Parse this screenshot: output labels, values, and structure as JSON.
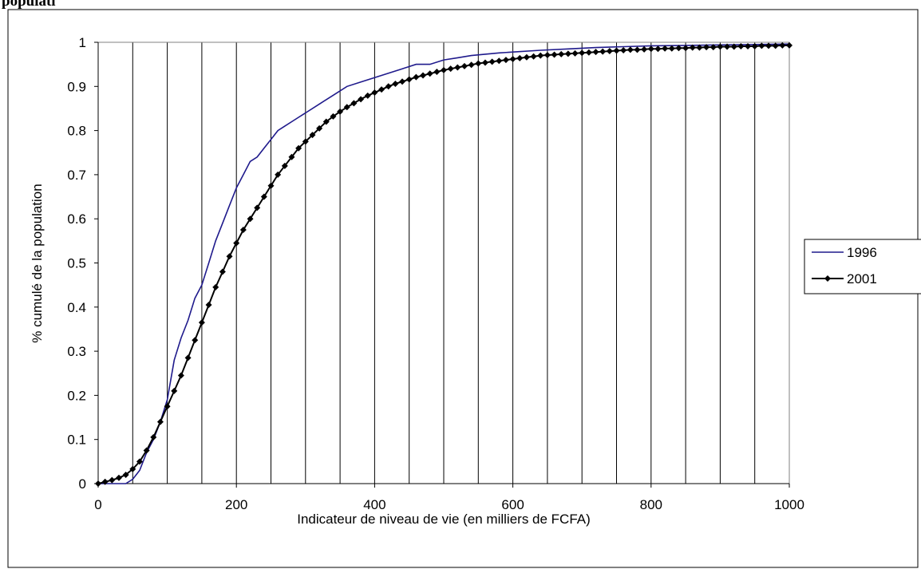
{
  "page": {
    "heading": "populati"
  },
  "chart_data": {
    "type": "line",
    "title": "",
    "xlabel": "Indicateur de niveau de vie (en milliers de FCFA)",
    "ylabel": "% cumulé de la population",
    "xlim": [
      0,
      1000
    ],
    "ylim": [
      0,
      1
    ],
    "x_ticks": [
      "0",
      "200",
      "400",
      "600",
      "800",
      "1000"
    ],
    "y_ticks": [
      "0",
      "0.1",
      "0.2",
      "0.3",
      "0.4",
      "0.5",
      "0.6",
      "0.7",
      "0.8",
      "0.9",
      "1"
    ],
    "vertical_gridlines_every": 50,
    "grid": true,
    "legend_position": "right",
    "series": [
      {
        "name": "1996",
        "color": "#1f1a8c",
        "marker": "none",
        "x": [
          0,
          40,
          50,
          60,
          70,
          80,
          90,
          100,
          110,
          120,
          130,
          140,
          150,
          160,
          170,
          180,
          190,
          200,
          210,
          220,
          230,
          240,
          250,
          260,
          270,
          280,
          290,
          300,
          320,
          340,
          360,
          380,
          400,
          420,
          440,
          460,
          480,
          500,
          520,
          540,
          560,
          580,
          600,
          640,
          680,
          720,
          760,
          800,
          850,
          900,
          950,
          1000
        ],
        "y": [
          0,
          0,
          0.01,
          0.03,
          0.07,
          0.1,
          0.14,
          0.19,
          0.28,
          0.33,
          0.37,
          0.42,
          0.45,
          0.5,
          0.55,
          0.59,
          0.63,
          0.67,
          0.7,
          0.73,
          0.74,
          0.76,
          0.78,
          0.8,
          0.81,
          0.82,
          0.83,
          0.84,
          0.86,
          0.88,
          0.9,
          0.91,
          0.92,
          0.93,
          0.94,
          0.95,
          0.95,
          0.96,
          0.965,
          0.97,
          0.973,
          0.976,
          0.978,
          0.982,
          0.985,
          0.988,
          0.99,
          0.992,
          0.993,
          0.994,
          0.995,
          0.996
        ]
      },
      {
        "name": "2001",
        "color": "#000000",
        "marker": "diamond",
        "x": [
          0,
          10,
          20,
          30,
          40,
          50,
          60,
          70,
          80,
          90,
          100,
          110,
          120,
          130,
          140,
          150,
          160,
          170,
          180,
          190,
          200,
          210,
          220,
          230,
          240,
          250,
          260,
          270,
          280,
          290,
          300,
          310,
          320,
          330,
          340,
          350,
          360,
          370,
          380,
          390,
          400,
          410,
          420,
          430,
          440,
          450,
          460,
          470,
          480,
          490,
          500,
          510,
          520,
          530,
          540,
          550,
          560,
          570,
          580,
          590,
          600,
          610,
          620,
          630,
          640,
          650,
          660,
          670,
          680,
          690,
          700,
          710,
          720,
          730,
          740,
          750,
          760,
          770,
          780,
          790,
          800,
          810,
          820,
          830,
          840,
          850,
          860,
          870,
          880,
          890,
          900,
          910,
          920,
          930,
          940,
          950,
          960,
          970,
          980,
          990,
          1000
        ],
        "y": [
          0,
          0.004,
          0.008,
          0.013,
          0.02,
          0.033,
          0.05,
          0.075,
          0.105,
          0.14,
          0.175,
          0.21,
          0.245,
          0.285,
          0.325,
          0.365,
          0.405,
          0.445,
          0.48,
          0.515,
          0.545,
          0.575,
          0.6,
          0.625,
          0.65,
          0.675,
          0.7,
          0.72,
          0.74,
          0.76,
          0.775,
          0.79,
          0.805,
          0.82,
          0.832,
          0.843,
          0.853,
          0.862,
          0.871,
          0.879,
          0.886,
          0.893,
          0.9,
          0.906,
          0.911,
          0.916,
          0.921,
          0.925,
          0.929,
          0.933,
          0.937,
          0.94,
          0.943,
          0.946,
          0.949,
          0.952,
          0.954,
          0.956,
          0.958,
          0.96,
          0.962,
          0.964,
          0.966,
          0.968,
          0.97,
          0.971,
          0.972,
          0.973,
          0.974,
          0.975,
          0.976,
          0.977,
          0.978,
          0.979,
          0.98,
          0.981,
          0.982,
          0.983,
          0.983,
          0.984,
          0.985,
          0.985,
          0.986,
          0.986,
          0.987,
          0.987,
          0.988,
          0.988,
          0.989,
          0.989,
          0.99,
          0.99,
          0.99,
          0.991,
          0.991,
          0.991,
          0.992,
          0.992,
          0.992,
          0.993,
          0.993
        ]
      }
    ]
  }
}
